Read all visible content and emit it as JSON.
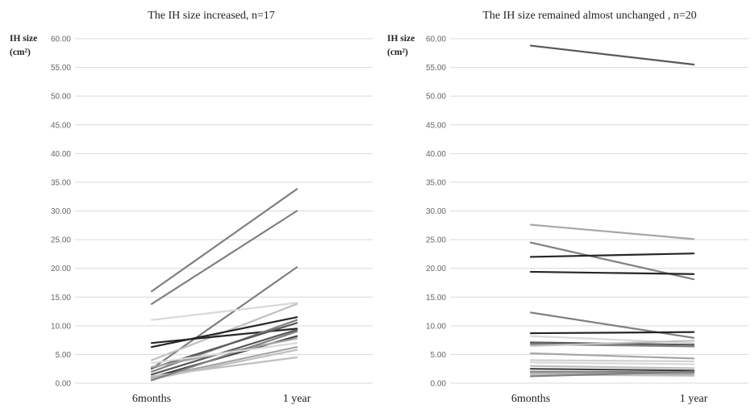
{
  "chart_data": [
    {
      "type": "line",
      "title": "The IH size increased, n=17",
      "ylabel_line1": "IH size",
      "ylabel_line2": "(cm²)",
      "categories": [
        "6months",
        "1 year"
      ],
      "ylim": [
        0,
        60
      ],
      "yticks": [
        "0.00",
        "5.00",
        "10.00",
        "15.00",
        "20.00",
        "25.00",
        "30.00",
        "35.00",
        "40.00",
        "45.00",
        "50.00",
        "55.00",
        "60.00"
      ],
      "grid": true,
      "series": [
        {
          "values": [
            16.0,
            33.8
          ],
          "color": "#7f7f7f"
        },
        {
          "values": [
            13.8,
            30.0
          ],
          "color": "#7f7f7f"
        },
        {
          "values": [
            2.5,
            20.2
          ],
          "color": "#7f7f7f"
        },
        {
          "values": [
            11.0,
            14.0
          ],
          "color": "#d9d9d9"
        },
        {
          "values": [
            4.0,
            13.8
          ],
          "color": "#bfbfbf"
        },
        {
          "values": [
            6.3,
            11.5
          ],
          "color": "#262626"
        },
        {
          "values": [
            7.0,
            9.5
          ],
          "color": "#262626"
        },
        {
          "values": [
            2.0,
            11.0
          ],
          "color": "#7f7f7f"
        },
        {
          "values": [
            2.6,
            10.5
          ],
          "color": "#595959"
        },
        {
          "values": [
            1.5,
            9.3
          ],
          "color": "#595959"
        },
        {
          "values": [
            1.0,
            8.2
          ],
          "color": "#404040"
        },
        {
          "values": [
            2.8,
            7.8
          ],
          "color": "#a6a6a6"
        },
        {
          "values": [
            0.9,
            6.3
          ],
          "color": "#a6a6a6"
        },
        {
          "values": [
            0.7,
            5.8
          ],
          "color": "#bfbfbf"
        },
        {
          "values": [
            1.2,
            4.5
          ],
          "color": "#bfbfbf"
        },
        {
          "values": [
            0.5,
            9.0
          ],
          "color": "#808080"
        },
        {
          "values": [
            3.5,
            7.0
          ],
          "color": "#d9d9d9"
        }
      ]
    },
    {
      "type": "line",
      "title": "The IH size remained almost unchanged , n=20",
      "ylabel_line1": "IH size",
      "ylabel_line2": "(cm²)",
      "categories": [
        "6months",
        "1 year"
      ],
      "ylim": [
        0,
        60
      ],
      "yticks": [
        "0.00",
        "5.00",
        "10.00",
        "15.00",
        "20.00",
        "25.00",
        "30.00",
        "35.00",
        "40.00",
        "45.00",
        "50.00",
        "55.00",
        "60.00"
      ],
      "grid": true,
      "series": [
        {
          "values": [
            58.8,
            55.5
          ],
          "color": "#595959"
        },
        {
          "values": [
            27.6,
            25.1
          ],
          "color": "#a6a6a6"
        },
        {
          "values": [
            24.5,
            18.1
          ],
          "color": "#7f7f7f"
        },
        {
          "values": [
            22.0,
            22.6
          ],
          "color": "#262626"
        },
        {
          "values": [
            19.4,
            19.0
          ],
          "color": "#262626"
        },
        {
          "values": [
            12.3,
            7.9
          ],
          "color": "#7f7f7f"
        },
        {
          "values": [
            8.7,
            8.9
          ],
          "color": "#262626"
        },
        {
          "values": [
            8.2,
            7.0
          ],
          "color": "#d9d9d9"
        },
        {
          "values": [
            7.1,
            6.7
          ],
          "color": "#595959"
        },
        {
          "values": [
            6.8,
            6.4
          ],
          "color": "#808080"
        },
        {
          "values": [
            6.5,
            7.4
          ],
          "color": "#bfbfbf"
        },
        {
          "values": [
            5.2,
            4.3
          ],
          "color": "#a6a6a6"
        },
        {
          "values": [
            3.6,
            3.3
          ],
          "color": "#d9d9d9"
        },
        {
          "values": [
            3.0,
            2.6
          ],
          "color": "#bfbfbf"
        },
        {
          "values": [
            2.5,
            2.2
          ],
          "color": "#404040"
        },
        {
          "values": [
            2.0,
            1.9
          ],
          "color": "#808080"
        },
        {
          "values": [
            1.8,
            1.6
          ],
          "color": "#a6a6a6"
        },
        {
          "values": [
            1.5,
            1.3
          ],
          "color": "#bfbfbf"
        },
        {
          "values": [
            1.2,
            2.0
          ],
          "color": "#7f7f7f"
        },
        {
          "values": [
            4.0,
            3.8
          ],
          "color": "#d0d0d0"
        }
      ]
    }
  ]
}
